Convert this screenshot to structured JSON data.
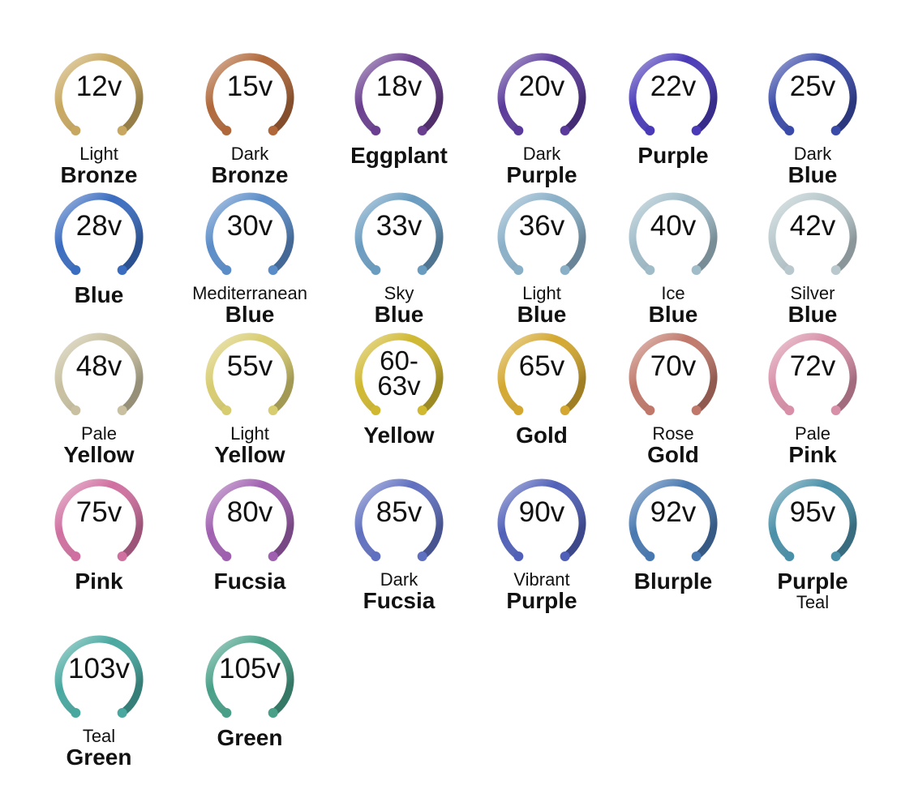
{
  "rings": [
    {
      "voltage": "12v",
      "top": "Light",
      "name": "Bronze",
      "color": "#c8a860"
    },
    {
      "voltage": "15v",
      "top": "Dark",
      "name": "Bronze",
      "color": "#b0683a"
    },
    {
      "voltage": "18v",
      "top": "",
      "name": "Eggplant",
      "color": "#6a3f8f"
    },
    {
      "voltage": "20v",
      "top": "Dark",
      "name": "Purple",
      "color": "#5a3a9a"
    },
    {
      "voltage": "22v",
      "top": "",
      "name": "Purple",
      "color": "#4a3ab8"
    },
    {
      "voltage": "25v",
      "top": "Dark",
      "name": "Blue",
      "color": "#3a4aa8"
    },
    {
      "voltage": "28v",
      "top": "",
      "name": "Blue",
      "color": "#3a6cc0"
    },
    {
      "voltage": "30v",
      "top": "Mediterranean",
      "name": "Blue",
      "color": "#5a8cc8"
    },
    {
      "voltage": "33v",
      "top": "Sky",
      "name": "Blue",
      "color": "#6a9cc0"
    },
    {
      "voltage": "36v",
      "top": "Light",
      "name": "Blue",
      "color": "#8ab0c8"
    },
    {
      "voltage": "40v",
      "top": "Ice",
      "name": "Blue",
      "color": "#a0bcc8"
    },
    {
      "voltage": "42v",
      "top": "Silver",
      "name": "Blue",
      "color": "#b8c8cc"
    },
    {
      "voltage": "48v",
      "top": "Pale",
      "name": "Yellow",
      "color": "#c8c0a0"
    },
    {
      "voltage": "55v",
      "top": "Light",
      "name": "Yellow",
      "color": "#d8cc70"
    },
    {
      "voltage": "60-63v",
      "top": "",
      "name": "Yellow",
      "color": "#d0b830"
    },
    {
      "voltage": "65v",
      "top": "",
      "name": "Gold",
      "color": "#d4a830"
    },
    {
      "voltage": "70v",
      "top": "Rose",
      "name": "Gold",
      "color": "#c0786a"
    },
    {
      "voltage": "72v",
      "top": "Pale",
      "name": "Pink",
      "color": "#d890a8"
    },
    {
      "voltage": "75v",
      "top": "",
      "name": "Pink",
      "color": "#d070a0"
    },
    {
      "voltage": "80v",
      "top": "",
      "name": "Fucsia",
      "color": "#a060b0"
    },
    {
      "voltage": "85v",
      "top": "Dark",
      "name": "Fucsia",
      "color": "#6070c0"
    },
    {
      "voltage": "90v",
      "top": "Vibrant",
      "name": "Purple",
      "color": "#5060b8"
    },
    {
      "voltage": "92v",
      "top": "",
      "name": "Blurple",
      "color": "#4878b0"
    },
    {
      "voltage": "95v",
      "top": "",
      "name": "Purple",
      "bottom": "Teal",
      "color": "#4a90a8"
    },
    {
      "voltage": "103v",
      "top": "Teal",
      "name": "Green",
      "color": "#48a8a0"
    },
    {
      "voltage": "105v",
      "top": "",
      "name": "Green",
      "color": "#48a088"
    }
  ]
}
